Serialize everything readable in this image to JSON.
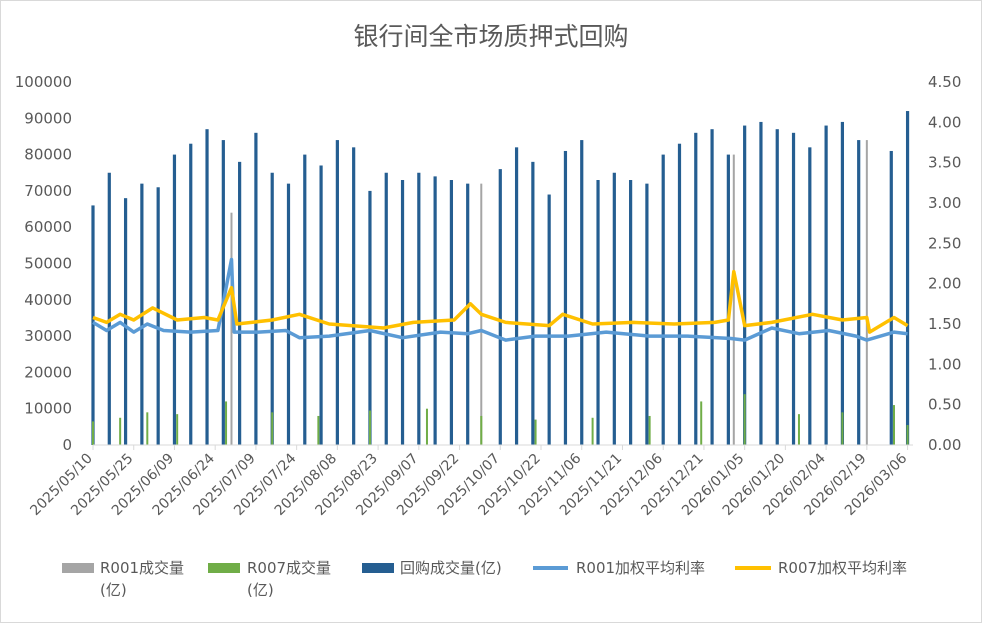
{
  "chart_data": {
    "type": "bar",
    "title": "银行间全市场质押式回购",
    "x_tick_labels": [
      "2025/05/10",
      "2025/05/25",
      "2025/06/09",
      "2025/06/24",
      "2025/07/09",
      "2025/07/24",
      "2025/08/08",
      "2025/08/23",
      "2025/09/07",
      "2025/09/22",
      "2025/10/07",
      "2025/10/22",
      "2025/11/06",
      "2025/11/21",
      "2025/12/06",
      "2025/12/21",
      "2026/01/05",
      "2026/01/20",
      "2026/02/04",
      "2026/02/19",
      "2026/03/06"
    ],
    "y_left_ticks": [
      "0",
      "10000",
      "20000",
      "30000",
      "40000",
      "50000",
      "60000",
      "70000",
      "80000",
      "90000",
      "100000"
    ],
    "y_right_ticks": [
      "0.00",
      "0.50",
      "1.00",
      "1.50",
      "2.00",
      "2.50",
      "3.00",
      "3.50",
      "4.00",
      "4.50"
    ],
    "ylim_left": [
      0,
      100000
    ],
    "ylim_right": [
      0,
      4.5
    ],
    "xlim": [
      "2025/05/10",
      "2026/03/08"
    ],
    "grid": false,
    "legend_position": "bottom",
    "legend": [
      {
        "label": "R001成交量(亿)",
        "color": "#a5a5a5",
        "kind": "bar"
      },
      {
        "label": "R007成交量(亿)",
        "color": "#70ad47",
        "kind": "bar"
      },
      {
        "label": "回购成交量(亿)",
        "color": "#255e91",
        "kind": "bar"
      },
      {
        "label": "R001加权平均利率",
        "color": "#5b9bd5",
        "kind": "line"
      },
      {
        "label": "R007加权平均利率",
        "color": "#ffc000",
        "kind": "line"
      }
    ],
    "series": [
      {
        "name": "R001成交量(亿)",
        "axis": "left",
        "x": [
          "2025/06/30",
          "2025/09/30",
          "2026/01/01",
          "2026/02/19"
        ],
        "values": [
          64000,
          72000,
          80000,
          84000
        ]
      },
      {
        "name": "R007成交量(亿)",
        "axis": "left",
        "x": [
          "2025/05/10",
          "2025/05/20",
          "2025/05/30",
          "2025/06/10",
          "2025/06/28",
          "2025/07/15",
          "2025/08/01",
          "2025/08/20",
          "2025/09/10",
          "2025/09/30",
          "2025/10/20",
          "2025/11/10",
          "2025/12/01",
          "2025/12/20",
          "2026/01/05",
          "2026/01/25",
          "2026/02/10",
          "2026/03/01",
          "2026/03/06"
        ],
        "values": [
          6500,
          7500,
          9000,
          8500,
          12000,
          9000,
          8000,
          9500,
          10000,
          8000,
          7000,
          7500,
          8000,
          12000,
          14000,
          8500,
          9000,
          11000,
          5500
        ]
      },
      {
        "name": "回购成交量(亿)",
        "axis": "left",
        "x": [
          "2025/05/10",
          "2025/05/16",
          "2025/05/22",
          "2025/05/28",
          "2025/06/03",
          "2025/06/09",
          "2025/06/15",
          "2025/06/21",
          "2025/06/27",
          "2025/07/03",
          "2025/07/09",
          "2025/07/15",
          "2025/07/21",
          "2025/07/27",
          "2025/08/02",
          "2025/08/08",
          "2025/08/14",
          "2025/08/20",
          "2025/08/26",
          "2025/09/01",
          "2025/09/07",
          "2025/09/13",
          "2025/09/19",
          "2025/09/25",
          "2025/10/01",
          "2025/10/07",
          "2025/10/13",
          "2025/10/19",
          "2025/10/25",
          "2025/10/31",
          "2025/11/06",
          "2025/11/12",
          "2025/11/18",
          "2025/11/24",
          "2025/11/30",
          "2025/12/06",
          "2025/12/12",
          "2025/12/18",
          "2025/12/24",
          "2025/12/30",
          "2026/01/05",
          "2026/01/11",
          "2026/01/17",
          "2026/01/23",
          "2026/01/29",
          "2026/02/04",
          "2026/02/10",
          "2026/02/16",
          "2026/02/22",
          "2026/02/28",
          "2026/03/06"
        ],
        "values": [
          66000,
          75000,
          68000,
          72000,
          71000,
          80000,
          83000,
          87000,
          84000,
          78000,
          86000,
          75000,
          72000,
          80000,
          77000,
          84000,
          82000,
          70000,
          75000,
          73000,
          75000,
          74000,
          73000,
          72000,
          0,
          76000,
          82000,
          78000,
          69000,
          81000,
          84000,
          73000,
          75000,
          73000,
          72000,
          80000,
          83000,
          86000,
          87000,
          80000,
          88000,
          89000,
          87000,
          86000,
          82000,
          88000,
          89000,
          84000,
          0,
          81000,
          92000
        ]
      },
      {
        "name": "R001加权平均利率",
        "axis": "right",
        "x": [
          "2025/05/10",
          "2025/05/15",
          "2025/05/20",
          "2025/05/25",
          "2025/05/30",
          "2025/06/05",
          "2025/06/15",
          "2025/06/25",
          "2025/06/30",
          "2025/07/01",
          "2025/07/10",
          "2025/07/20",
          "2025/07/25",
          "2025/08/05",
          "2025/08/20",
          "2025/09/01",
          "2025/09/15",
          "2025/09/25",
          "2025/09/30",
          "2025/10/09",
          "2025/10/20",
          "2025/11/01",
          "2025/11/15",
          "2025/12/01",
          "2025/12/15",
          "2025/12/31",
          "2026/01/05",
          "2026/01/15",
          "2026/01/25",
          "2026/02/05",
          "2026/02/15",
          "2026/02/19",
          "2026/03/01",
          "2026/03/06"
        ],
        "values": [
          1.52,
          1.42,
          1.52,
          1.4,
          1.5,
          1.42,
          1.4,
          1.42,
          2.3,
          1.4,
          1.4,
          1.42,
          1.33,
          1.35,
          1.42,
          1.33,
          1.4,
          1.38,
          1.42,
          1.3,
          1.35,
          1.35,
          1.4,
          1.35,
          1.35,
          1.32,
          1.3,
          1.45,
          1.38,
          1.42,
          1.35,
          1.3,
          1.4,
          1.38
        ]
      },
      {
        "name": "R007加权平均利率",
        "axis": "right",
        "x": [
          "2025/05/10",
          "2025/05/15",
          "2025/05/20",
          "2025/05/25",
          "2025/06/01",
          "2025/06/10",
          "2025/06/20",
          "2025/06/25",
          "2025/06/30",
          "2025/07/02",
          "2025/07/15",
          "2025/07/25",
          "2025/08/05",
          "2025/08/25",
          "2025/09/05",
          "2025/09/20",
          "2025/09/26",
          "2025/09/30",
          "2025/10/09",
          "2025/10/25",
          "2025/10/30",
          "2025/11/10",
          "2025/11/25",
          "2025/12/10",
          "2025/12/25",
          "2025/12/30",
          "2026/01/01",
          "2026/01/05",
          "2026/01/15",
          "2026/01/30",
          "2026/02/10",
          "2026/02/19",
          "2026/02/20",
          "2026/03/01",
          "2026/03/06"
        ],
        "values": [
          1.58,
          1.52,
          1.62,
          1.55,
          1.7,
          1.55,
          1.58,
          1.55,
          1.95,
          1.5,
          1.55,
          1.62,
          1.5,
          1.45,
          1.52,
          1.55,
          1.75,
          1.62,
          1.52,
          1.48,
          1.62,
          1.5,
          1.52,
          1.5,
          1.52,
          1.55,
          2.15,
          1.48,
          1.52,
          1.62,
          1.55,
          1.58,
          1.4,
          1.58,
          1.48
        ]
      }
    ]
  }
}
